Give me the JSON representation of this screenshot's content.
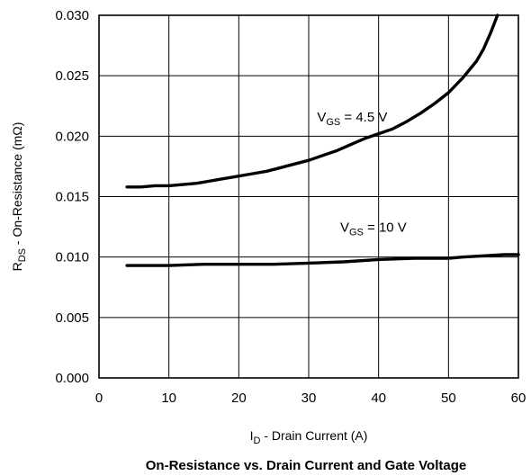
{
  "chart_data": {
    "type": "line",
    "title": "On-Resistance vs. Drain Current and Gate Voltage",
    "xlabel": {
      "main": "I",
      "sub": "D",
      "rest": " - Drain Current (A)"
    },
    "ylabel": {
      "main": "R",
      "sub": "DS",
      "rest": " - On-Resistance  (mΩ)"
    },
    "xlim": [
      0,
      60
    ],
    "ylim": [
      0.0,
      0.03
    ],
    "x_ticks": [
      "0",
      "10",
      "20",
      "30",
      "40",
      "50",
      "60"
    ],
    "y_ticks": [
      "0.000",
      "0.005",
      "0.010",
      "0.015",
      "0.020",
      "0.025",
      "0.030"
    ],
    "grid": true,
    "series": [
      {
        "name": {
          "main": "V",
          "sub": "GS",
          "rest": " = 4.5 V"
        },
        "x": [
          4,
          6,
          8,
          10,
          12,
          14,
          16,
          18,
          20,
          22,
          24,
          26,
          28,
          30,
          32,
          34,
          36,
          38,
          40,
          42,
          44,
          46,
          48,
          50,
          52,
          54,
          55,
          56,
          57
        ],
        "y": [
          0.0158,
          0.0158,
          0.0159,
          0.0159,
          0.016,
          0.0161,
          0.0163,
          0.0165,
          0.0167,
          0.0169,
          0.0171,
          0.0174,
          0.0177,
          0.018,
          0.0184,
          0.0188,
          0.0193,
          0.0198,
          0.0202,
          0.0206,
          0.0212,
          0.0219,
          0.0227,
          0.0236,
          0.0248,
          0.0262,
          0.0272,
          0.0285,
          0.03
        ]
      },
      {
        "name": {
          "main": "V",
          "sub": "GS",
          "rest": " = 10 V"
        },
        "x": [
          4,
          10,
          15,
          20,
          25,
          30,
          35,
          40,
          45,
          50,
          52,
          55,
          58,
          60
        ],
        "y": [
          0.0093,
          0.0093,
          0.0094,
          0.0094,
          0.0094,
          0.0095,
          0.0096,
          0.0098,
          0.0099,
          0.0099,
          0.01,
          0.0101,
          0.0102,
          0.0102
        ]
      }
    ],
    "annotations": [
      {
        "series": 0,
        "x": 31.2,
        "y": 0.0212
      },
      {
        "series": 1,
        "x": 34.5,
        "y": 0.0121
      }
    ]
  }
}
